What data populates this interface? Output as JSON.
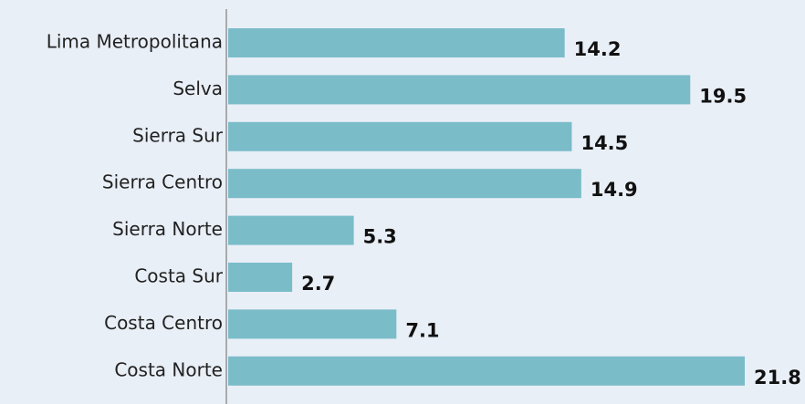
{
  "chart_data": {
    "type": "bar",
    "orientation": "horizontal",
    "categories": [
      "Lima Metropolitana",
      "Selva",
      "Sierra Sur",
      "Sierra Centro",
      "Sierra Norte",
      "Costa Sur",
      "Costa Centro",
      "Costa Norte"
    ],
    "values": [
      14.2,
      19.5,
      14.5,
      14.9,
      5.3,
      2.7,
      7.1,
      21.8
    ],
    "color": "#7bbcc9"
  }
}
